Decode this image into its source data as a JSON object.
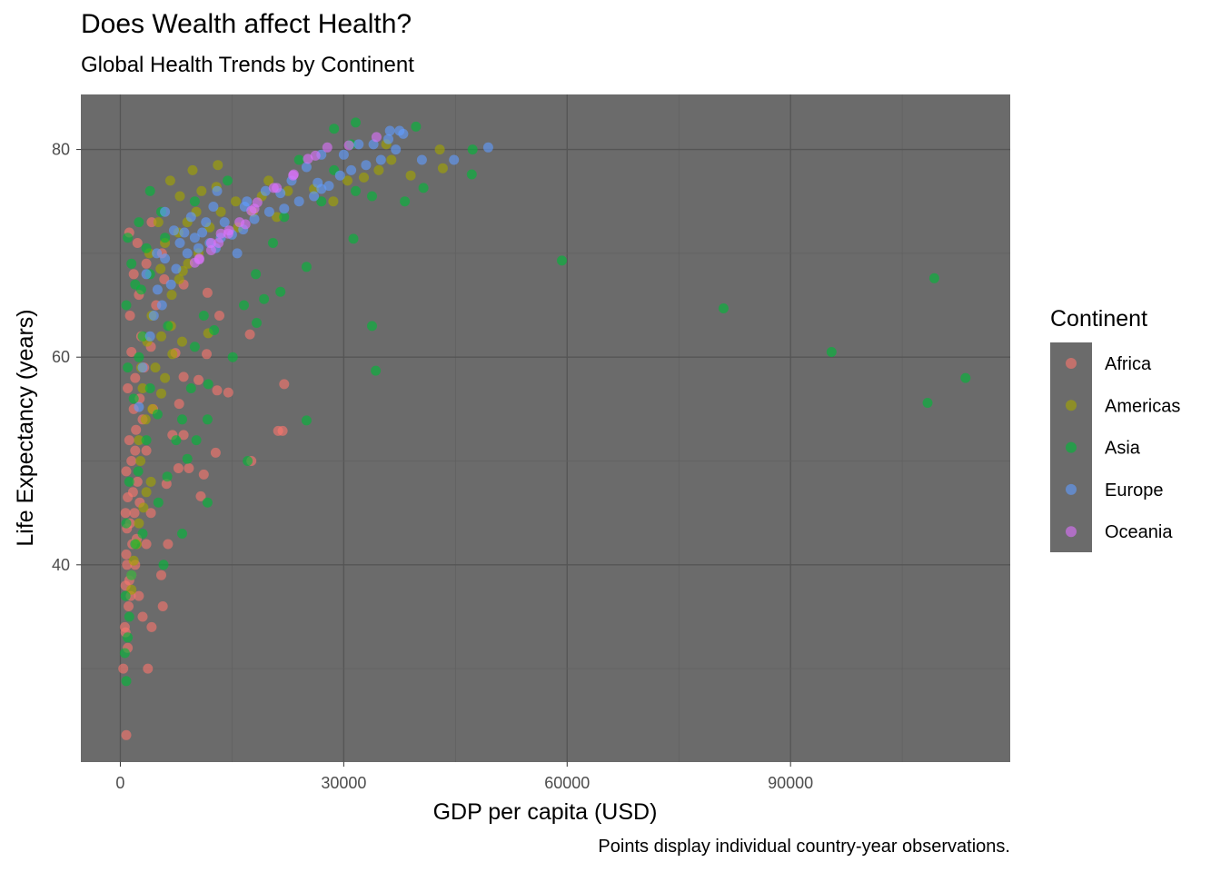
{
  "chart_data": {
    "type": "scatter",
    "title": "Does Wealth affect Health?",
    "subtitle": "Global Health Trends by Continent",
    "caption": "Points display individual country-year observations.",
    "xlabel": "GDP per capita (USD)",
    "ylabel": "Life Expectancy (years)",
    "xlim": [
      -5300,
      119500
    ],
    "ylim": [
      21.0,
      85.3
    ],
    "xticks": [
      0,
      30000,
      60000,
      90000
    ],
    "yticks": [
      40,
      60,
      80
    ],
    "grid": true,
    "panel_background": "#6b6b6b",
    "legend": {
      "title": "Continent",
      "position": "right"
    },
    "series": [
      {
        "name": "Africa",
        "color": "#F8766D",
        "points": [
          [
            800,
            23.6
          ],
          [
            400,
            30.0
          ],
          [
            3700,
            30.0
          ],
          [
            700,
            33.5
          ],
          [
            1000,
            32.0
          ],
          [
            4200,
            34.0
          ],
          [
            3000,
            35.0
          ],
          [
            5700,
            36.0
          ],
          [
            2500,
            37.0
          ],
          [
            700,
            38.0
          ],
          [
            1200,
            38.5
          ],
          [
            1500,
            39.0
          ],
          [
            2000,
            40.0
          ],
          [
            5500,
            39.0
          ],
          [
            800,
            41.0
          ],
          [
            1600,
            42.0
          ],
          [
            2200,
            42.5
          ],
          [
            3500,
            42.0
          ],
          [
            6400,
            42.0
          ],
          [
            900,
            43.5
          ],
          [
            1300,
            44.0
          ],
          [
            1900,
            45.0
          ],
          [
            2600,
            46.0
          ],
          [
            4100,
            45.0
          ],
          [
            1000,
            46.5
          ],
          [
            1700,
            47.0
          ],
          [
            2300,
            48.0
          ],
          [
            6200,
            47.8
          ],
          [
            10800,
            46.6
          ],
          [
            800,
            49.0
          ],
          [
            1500,
            50.0
          ],
          [
            2000,
            51.0
          ],
          [
            3500,
            51.0
          ],
          [
            7800,
            49.3
          ],
          [
            9200,
            49.3
          ],
          [
            11200,
            48.7
          ],
          [
            1200,
            52.0
          ],
          [
            2100,
            53.0
          ],
          [
            3000,
            54.0
          ],
          [
            12800,
            50.8
          ],
          [
            7000,
            52.5
          ],
          [
            8500,
            52.5
          ],
          [
            1800,
            55.0
          ],
          [
            2600,
            56.0
          ],
          [
            4400,
            55.0
          ],
          [
            7900,
            55.5
          ],
          [
            17600,
            50.0
          ],
          [
            21800,
            52.9
          ],
          [
            21200,
            52.9
          ],
          [
            1000,
            57.0
          ],
          [
            2000,
            58.0
          ],
          [
            3200,
            59.0
          ],
          [
            8500,
            58.1
          ],
          [
            10500,
            57.8
          ],
          [
            13000,
            56.8
          ],
          [
            14500,
            56.6
          ],
          [
            22000,
            57.4
          ],
          [
            1500,
            60.5
          ],
          [
            2800,
            62.0
          ],
          [
            4100,
            61.0
          ],
          [
            7400,
            60.4
          ],
          [
            11600,
            60.3
          ],
          [
            17400,
            62.2
          ],
          [
            13300,
            64.0
          ],
          [
            1300,
            64.0
          ],
          [
            2500,
            66.0
          ],
          [
            4800,
            65.0
          ],
          [
            5900,
            67.5
          ],
          [
            8500,
            67.0
          ],
          [
            11700,
            66.2
          ],
          [
            1800,
            68.0
          ],
          [
            3500,
            69.0
          ],
          [
            5600,
            70.0
          ],
          [
            1200,
            72.0
          ],
          [
            2300,
            71.0
          ],
          [
            4200,
            73.0
          ],
          [
            700,
            45.0
          ],
          [
            900,
            40.0
          ],
          [
            1100,
            36.0
          ],
          [
            600,
            34.0
          ],
          [
            1400,
            37.0
          ]
        ]
      },
      {
        "name": "Americas",
        "color": "#A3A500",
        "points": [
          [
            1500,
            37.6
          ],
          [
            1800,
            40.4
          ],
          [
            2200,
            42.0
          ],
          [
            2500,
            44.0
          ],
          [
            3100,
            45.5
          ],
          [
            3500,
            47.0
          ],
          [
            4100,
            48.0
          ],
          [
            2700,
            50.0
          ],
          [
            2500,
            52.0
          ],
          [
            3400,
            54.0
          ],
          [
            4300,
            55.0
          ],
          [
            5500,
            56.5
          ],
          [
            3000,
            57.0
          ],
          [
            6000,
            58.0
          ],
          [
            4700,
            59.0
          ],
          [
            7000,
            60.3
          ],
          [
            8300,
            61.5
          ],
          [
            5500,
            62.0
          ],
          [
            6800,
            63.0
          ],
          [
            4200,
            64.0
          ],
          [
            6900,
            66.0
          ],
          [
            7900,
            67.5
          ],
          [
            5400,
            68.5
          ],
          [
            9100,
            69.0
          ],
          [
            10500,
            70.0
          ],
          [
            6000,
            71.0
          ],
          [
            7800,
            72.0
          ],
          [
            12000,
            72.5
          ],
          [
            9000,
            73.0
          ],
          [
            10200,
            74.0
          ],
          [
            13500,
            74.0
          ],
          [
            15500,
            75.0
          ],
          [
            8000,
            75.5
          ],
          [
            10900,
            76.0
          ],
          [
            12900,
            76.4
          ],
          [
            6700,
            77.0
          ],
          [
            9700,
            78.0
          ],
          [
            13100,
            78.5
          ],
          [
            19900,
            77.0
          ],
          [
            26000,
            76.2
          ],
          [
            28600,
            75.0
          ],
          [
            30500,
            77.0
          ],
          [
            32700,
            77.3
          ],
          [
            34700,
            78.0
          ],
          [
            36400,
            79.0
          ],
          [
            39000,
            77.5
          ],
          [
            43300,
            78.2
          ],
          [
            42900,
            80.0
          ],
          [
            35700,
            80.5
          ],
          [
            5100,
            73.0
          ],
          [
            3900,
            70.0
          ],
          [
            11800,
            62.3
          ],
          [
            8400,
            68.3
          ],
          [
            15800,
            72.5
          ],
          [
            17800,
            74.0
          ],
          [
            19000,
            75.5
          ],
          [
            21000,
            73.5
          ],
          [
            22500,
            76.0
          ],
          [
            2800,
            59.0
          ],
          [
            3600,
            61.5
          ]
        ]
      },
      {
        "name": "Asia",
        "color": "#00BA38",
        "points": [
          [
            800,
            28.8
          ],
          [
            600,
            31.5
          ],
          [
            1000,
            33.0
          ],
          [
            1200,
            35.0
          ],
          [
            700,
            37.0
          ],
          [
            1500,
            39.0
          ],
          [
            5800,
            40.0
          ],
          [
            2000,
            42.0
          ],
          [
            800,
            44.0
          ],
          [
            3000,
            43.0
          ],
          [
            5100,
            46.0
          ],
          [
            8300,
            43.0
          ],
          [
            11700,
            46.0
          ],
          [
            1200,
            48.0
          ],
          [
            2400,
            49.0
          ],
          [
            6300,
            48.5
          ],
          [
            9000,
            50.2
          ],
          [
            17100,
            50.0
          ],
          [
            3500,
            52.0
          ],
          [
            7500,
            52.0
          ],
          [
            10200,
            52.0
          ],
          [
            25000,
            53.9
          ],
          [
            5000,
            54.5
          ],
          [
            8300,
            54.0
          ],
          [
            11700,
            54.0
          ],
          [
            1800,
            56.0
          ],
          [
            4000,
            57.0
          ],
          [
            9500,
            57.0
          ],
          [
            11800,
            57.4
          ],
          [
            15100,
            60.0
          ],
          [
            1000,
            59.0
          ],
          [
            2500,
            60.0
          ],
          [
            10000,
            61.0
          ],
          [
            12600,
            62.6
          ],
          [
            18300,
            63.3
          ],
          [
            33800,
            63.0
          ],
          [
            34300,
            58.7
          ],
          [
            3000,
            62.0
          ],
          [
            6400,
            63.0
          ],
          [
            11200,
            64.0
          ],
          [
            16600,
            65.0
          ],
          [
            19300,
            65.6
          ],
          [
            21500,
            66.3
          ],
          [
            800,
            65.0
          ],
          [
            2000,
            67.0
          ],
          [
            4000,
            68.0
          ],
          [
            18200,
            68.0
          ],
          [
            25000,
            68.7
          ],
          [
            1500,
            69.0
          ],
          [
            3500,
            70.5
          ],
          [
            6000,
            71.5
          ],
          [
            20500,
            71.0
          ],
          [
            31300,
            71.4
          ],
          [
            59300,
            69.3
          ],
          [
            81000,
            64.7
          ],
          [
            95500,
            60.5
          ],
          [
            108400,
            55.6
          ],
          [
            109300,
            67.6
          ],
          [
            113500,
            58.0
          ],
          [
            2500,
            73.0
          ],
          [
            5500,
            74.0
          ],
          [
            10000,
            75.0
          ],
          [
            22000,
            73.5
          ],
          [
            27000,
            75.0
          ],
          [
            31600,
            76.0
          ],
          [
            33800,
            75.5
          ],
          [
            38200,
            75.0
          ],
          [
            4000,
            76.0
          ],
          [
            14400,
            77.0
          ],
          [
            28700,
            78.0
          ],
          [
            24000,
            79.0
          ],
          [
            31000,
            80.5
          ],
          [
            28700,
            82.0
          ],
          [
            31600,
            82.6
          ],
          [
            39700,
            82.2
          ],
          [
            40700,
            76.3
          ],
          [
            47300,
            80.0
          ],
          [
            47200,
            77.6
          ],
          [
            1000,
            71.5
          ],
          [
            2800,
            66.5
          ]
        ]
      },
      {
        "name": "Europe",
        "color": "#619CFF",
        "points": [
          [
            2500,
            55.2
          ],
          [
            3000,
            59.0
          ],
          [
            4000,
            62.0
          ],
          [
            4500,
            64.0
          ],
          [
            5600,
            65.0
          ],
          [
            5000,
            66.5
          ],
          [
            6800,
            67.0
          ],
          [
            3500,
            68.0
          ],
          [
            7500,
            68.5
          ],
          [
            6000,
            69.5
          ],
          [
            9000,
            70.0
          ],
          [
            10500,
            70.5
          ],
          [
            8000,
            71.0
          ],
          [
            12000,
            71.0
          ],
          [
            13500,
            71.5
          ],
          [
            15000,
            71.8
          ],
          [
            11000,
            72.0
          ],
          [
            16500,
            72.3
          ],
          [
            14000,
            73.0
          ],
          [
            18000,
            73.3
          ],
          [
            9500,
            73.5
          ],
          [
            20000,
            74.0
          ],
          [
            12500,
            74.5
          ],
          [
            22000,
            74.3
          ],
          [
            17000,
            75.0
          ],
          [
            24000,
            75.0
          ],
          [
            26000,
            75.5
          ],
          [
            13000,
            76.0
          ],
          [
            27000,
            76.2
          ],
          [
            19500,
            76.0
          ],
          [
            28000,
            76.5
          ],
          [
            23000,
            77.0
          ],
          [
            29500,
            77.5
          ],
          [
            31000,
            78.0
          ],
          [
            25000,
            78.3
          ],
          [
            33000,
            78.5
          ],
          [
            35000,
            79.0
          ],
          [
            27000,
            79.5
          ],
          [
            30000,
            79.5
          ],
          [
            37000,
            80.0
          ],
          [
            32000,
            80.5
          ],
          [
            34000,
            80.5
          ],
          [
            36000,
            81.0
          ],
          [
            38000,
            81.5
          ],
          [
            40500,
            79.0
          ],
          [
            44800,
            79.0
          ],
          [
            49400,
            80.2
          ],
          [
            36200,
            81.8
          ],
          [
            37500,
            81.8
          ],
          [
            4900,
            70.0
          ],
          [
            7200,
            72.2
          ],
          [
            10000,
            71.5
          ],
          [
            11500,
            73.0
          ],
          [
            12800,
            70.5
          ],
          [
            15700,
            70.0
          ],
          [
            6000,
            74.0
          ],
          [
            8600,
            72.0
          ],
          [
            21500,
            75.8
          ],
          [
            16700,
            74.5
          ],
          [
            26500,
            76.8
          ]
        ]
      },
      {
        "name": "Oceania",
        "color": "#DB72FB",
        "points": [
          [
            10000,
            69.1
          ],
          [
            10600,
            69.4
          ],
          [
            12200,
            70.3
          ],
          [
            13200,
            71.0
          ],
          [
            14500,
            71.9
          ],
          [
            16800,
            72.8
          ],
          [
            18000,
            74.3
          ],
          [
            20600,
            76.3
          ],
          [
            23300,
            77.6
          ],
          [
            26200,
            79.4
          ],
          [
            30700,
            80.4
          ],
          [
            34400,
            81.2
          ],
          [
            10600,
            69.5
          ],
          [
            12200,
            71.0
          ],
          [
            13500,
            71.9
          ],
          [
            14600,
            72.2
          ],
          [
            16000,
            73.0
          ],
          [
            17600,
            74.1
          ],
          [
            18400,
            74.9
          ],
          [
            21000,
            76.3
          ],
          [
            23200,
            77.5
          ],
          [
            25200,
            79.1
          ],
          [
            27800,
            80.2
          ]
        ]
      }
    ]
  }
}
